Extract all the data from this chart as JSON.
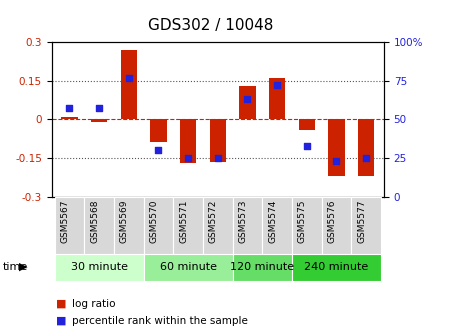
{
  "title": "GDS302 / 10048",
  "samples": [
    "GSM5567",
    "GSM5568",
    "GSM5569",
    "GSM5570",
    "GSM5571",
    "GSM5572",
    "GSM5573",
    "GSM5574",
    "GSM5575",
    "GSM5576",
    "GSM5577"
  ],
  "log_ratio": [
    0.01,
    -0.01,
    0.27,
    -0.09,
    -0.17,
    -0.165,
    0.13,
    0.16,
    -0.04,
    -0.22,
    -0.22
  ],
  "percentile": [
    57,
    57,
    77,
    30,
    25,
    25,
    63,
    72,
    33,
    23,
    25
  ],
  "bar_color": "#cc2200",
  "dot_color": "#2222dd",
  "ylim": [
    -0.3,
    0.3
  ],
  "yticks_left": [
    -0.3,
    -0.15,
    0.0,
    0.15,
    0.3
  ],
  "yticks_left_labels": [
    "-0.3",
    "-0.15",
    "0",
    "0.15",
    "0.3"
  ],
  "yticks_right": [
    0,
    25,
    50,
    75,
    100
  ],
  "yticks_right_labels": [
    "0",
    "25",
    "50",
    "75",
    "100%"
  ],
  "dotted_lines": [
    -0.15,
    0.15
  ],
  "zero_line_color": "#cc2200",
  "dotted_color": "#555555",
  "time_groups": [
    {
      "label": "30 minute",
      "start": 0,
      "end": 2,
      "color": "#ccffcc"
    },
    {
      "label": "60 minute",
      "start": 3,
      "end": 5,
      "color": "#99ee99"
    },
    {
      "label": "120 minute",
      "start": 6,
      "end": 7,
      "color": "#66dd66"
    },
    {
      "label": "240 minute",
      "start": 8,
      "end": 10,
      "color": "#33cc33"
    }
  ],
  "time_label": "time",
  "legend_log_ratio": "log ratio",
  "legend_percentile": "percentile rank within the sample",
  "bar_width": 0.55,
  "plot_bg": "#ffffff",
  "ylabel_left_color": "#cc2200",
  "ylabel_right_color": "#2222dd",
  "title_fontsize": 11,
  "tick_fontsize": 7.5,
  "sample_label_fontsize": 6.5,
  "legend_fontsize": 7.5,
  "time_fontsize": 8
}
